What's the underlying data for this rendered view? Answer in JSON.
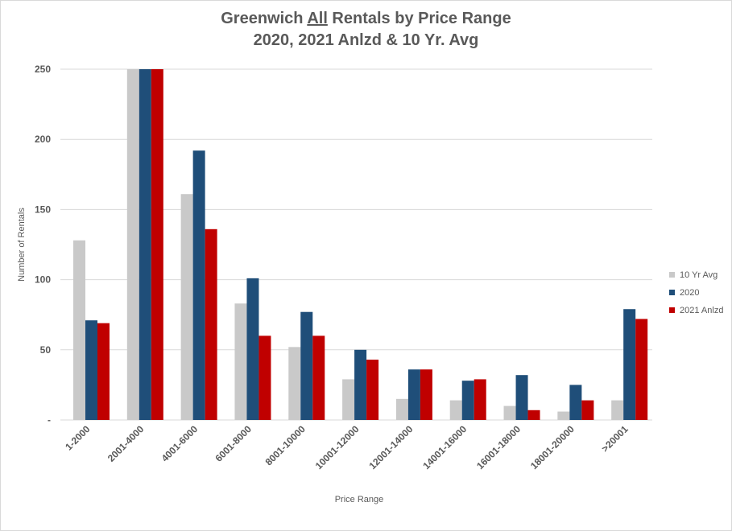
{
  "chart_data": {
    "type": "bar",
    "title_line1_pre": "Greenwich ",
    "title_line1_underlined": "All",
    "title_line1_post": " Rentals by Price Range",
    "title_line2": "2020, 2021 Anlzd & 10 Yr. Avg",
    "xlabel": "Price Range",
    "ylabel": "Number  of Rentals",
    "ylim": [
      0,
      250
    ],
    "yticks": [
      {
        "value": 0,
        "label": "-"
      },
      {
        "value": 50,
        "label": "50"
      },
      {
        "value": 100,
        "label": "100"
      },
      {
        "value": 150,
        "label": "150"
      },
      {
        "value": 200,
        "label": "200"
      },
      {
        "value": 250,
        "label": "250"
      }
    ],
    "grid": true,
    "legend_position": "right",
    "categories": [
      "1-2000",
      "2001-4000",
      "4001-6000",
      "6001-8000",
      "8001-10000",
      "10001-12000",
      "12001-14000",
      "14001-16000",
      "16001-18000",
      "18001-20000",
      ">20001"
    ],
    "series": [
      {
        "name": "10 Yr Avg",
        "color": "#c9c9c9",
        "values": [
          128,
          250,
          161,
          83,
          52,
          29,
          15,
          14,
          10,
          6,
          14
        ]
      },
      {
        "name": "2020",
        "color": "#1f4e79",
        "values": [
          71,
          250,
          192,
          101,
          77,
          50,
          36,
          28,
          32,
          25,
          79
        ]
      },
      {
        "name": "2021 Anlzd",
        "color": "#c00000",
        "values": [
          69,
          250,
          136,
          60,
          60,
          43,
          36,
          29,
          7,
          14,
          72
        ]
      }
    ]
  }
}
